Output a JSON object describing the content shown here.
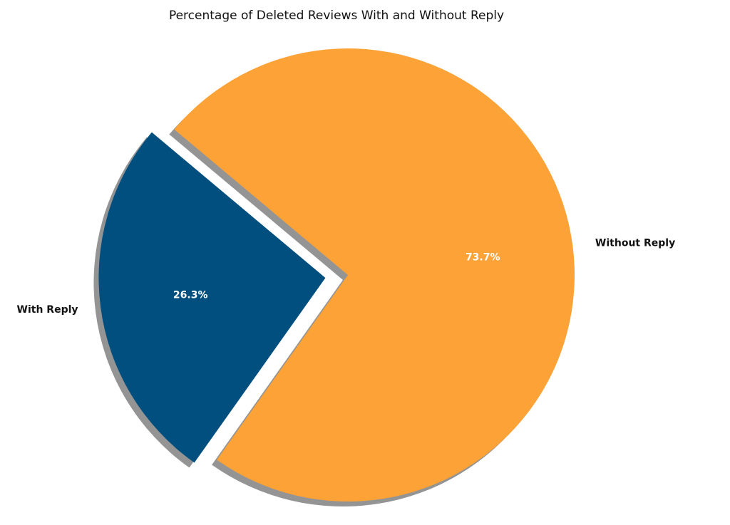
{
  "chart_data": {
    "type": "pie",
    "title": "Percentage of Deleted Reviews With and Without Reply",
    "categories": [
      "With Reply",
      "Without Reply"
    ],
    "values": [
      26.3,
      73.7
    ],
    "value_labels": [
      "26.3%",
      "73.7%"
    ],
    "colors": [
      "#004f7f",
      "#fca236"
    ],
    "shadow": true
  }
}
